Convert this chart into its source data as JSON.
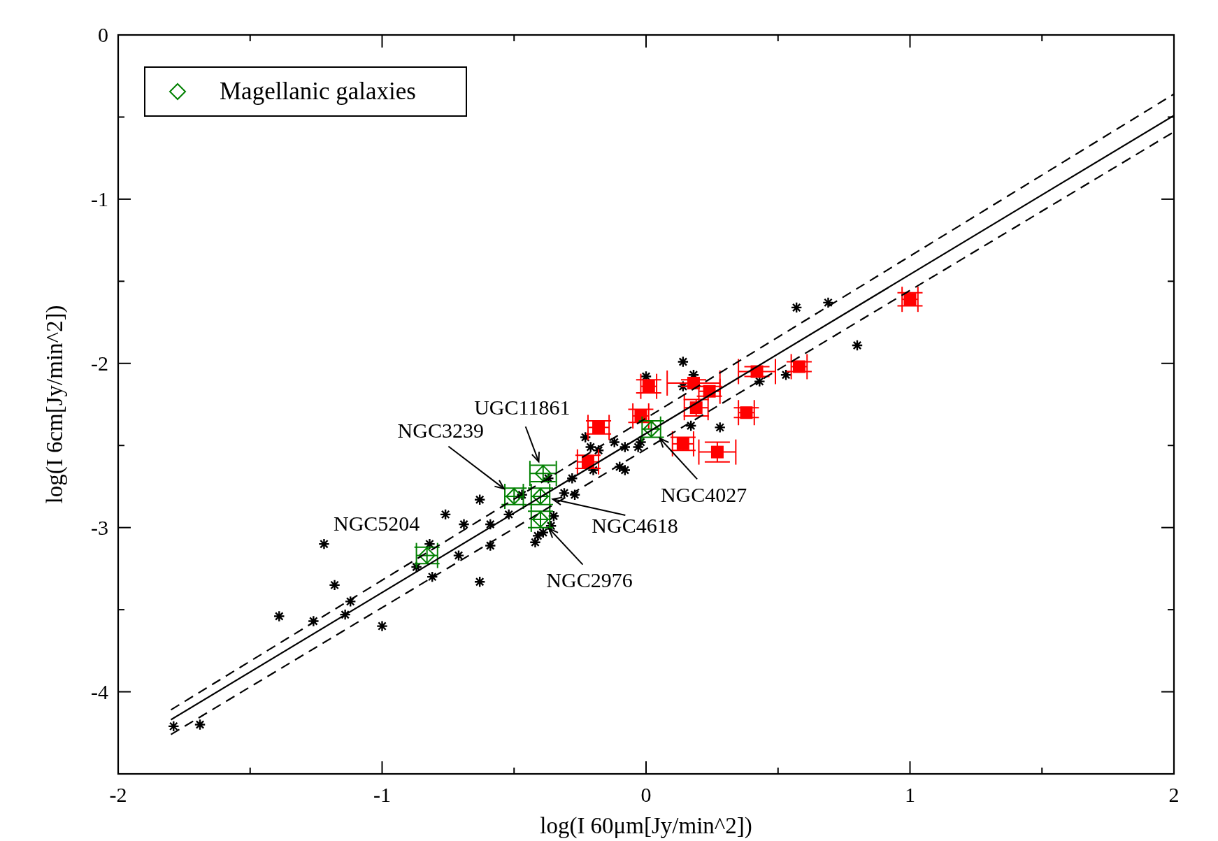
{
  "chart_data": {
    "type": "scatter",
    "xlabel": "log(I 60μm[Jy/min^2])",
    "ylabel": "log(I 6cm[Jy/min^2])",
    "xlim": [
      -2,
      2
    ],
    "xticks": [
      -2,
      {
        "value": -1.5,
        "label": null
      },
      -1,
      {
        "value": -0.5,
        "label": null
      },
      0,
      {
        "value": 0.5,
        "label": null
      },
      1,
      {
        "value": 1.5,
        "label": null
      },
      2
    ],
    "ylim": [
      -4.5,
      0
    ],
    "yticks": [
      {
        "value": -4.5,
        "label": null
      },
      -4,
      {
        "value": -3.5,
        "label": null
      },
      -3,
      {
        "value": -2.5,
        "label": null
      },
      -2,
      {
        "value": -1.5,
        "label": null
      },
      -1,
      {
        "value": -0.5,
        "label": null
      },
      0
    ],
    "legend": "top left",
    "series": [
      {
        "color": "#000000",
        "marker": "cross",
        "x": [
          -1.79,
          -1.69,
          -1.39,
          -1.26,
          -1.22,
          -1.18,
          -1.14,
          -1.12,
          -1.0,
          -0.87,
          -0.82,
          -0.81,
          -0.76,
          -0.71,
          -0.69,
          -0.63,
          -0.59,
          -0.63,
          -0.59,
          -0.52,
          -0.47,
          -0.42,
          -0.41,
          -0.39,
          -0.36,
          -0.35,
          -0.37,
          -0.31,
          -0.27,
          -0.28,
          -0.23,
          -0.21,
          -0.2,
          -0.18,
          -0.12,
          -0.1,
          -0.08,
          -0.08,
          -0.03,
          -0.02,
          0.0,
          0.14,
          0.17,
          0.28,
          0.14,
          0.18,
          0.43,
          0.53,
          0.57,
          0.69,
          0.8
        ],
        "values": [
          -4.21,
          -4.2,
          -3.54,
          -3.57,
          -3.1,
          -3.35,
          -3.53,
          -3.45,
          -3.6,
          -3.24,
          -3.1,
          -3.3,
          -2.92,
          -3.17,
          -2.98,
          -3.33,
          -3.11,
          -2.83,
          -2.98,
          -2.92,
          -2.8,
          -3.09,
          -3.05,
          -3.03,
          -2.99,
          -2.93,
          -2.7,
          -2.79,
          -2.8,
          -2.7,
          -2.45,
          -2.51,
          -2.65,
          -2.53,
          -2.48,
          -2.63,
          -2.65,
          -2.51,
          -2.51,
          -2.48,
          -2.08,
          -1.99,
          -2.38,
          -2.39,
          -2.14,
          -2.07,
          -2.11,
          -2.07,
          -1.66,
          -1.63,
          -1.89
        ]
      },
      {
        "color": "#ff0000",
        "marker": "square",
        "x": [
          -0.18,
          -0.22,
          -0.02,
          0.01,
          0.18,
          0.24,
          0.19,
          0.14,
          0.27,
          0.38,
          0.42,
          0.58,
          1.0
        ],
        "values": [
          -2.39,
          -2.6,
          -2.32,
          -2.14,
          -2.12,
          -2.17,
          -2.27,
          -2.49,
          -2.54,
          -2.3,
          -2.05,
          -2.02,
          -1.61
        ],
        "xerrors": [
          0.04,
          0.04,
          0.03,
          0.03,
          0.1,
          0.04,
          0.045,
          0.04,
          0.07,
          0.03,
          0.07,
          0.03,
          0.03
        ],
        "errors": [
          0.04,
          0.04,
          0.04,
          0.04,
          0.02,
          0.03,
          0.05,
          0.04,
          0.06,
          0.03,
          0.03,
          0.03,
          0.04
        ]
      },
      {
        "name": "Magellanic galaxies",
        "color": "#008000",
        "marker": "diamond",
        "x": [
          -0.83,
          -0.5,
          -0.39,
          -0.4,
          -0.4,
          0.02
        ],
        "values": [
          -3.17,
          -2.81,
          -2.67,
          -2.81,
          -2.95,
          -2.4
        ],
        "xerrors": [
          0.04,
          0.035,
          0.05,
          0.035,
          0.035,
          0.035
        ],
        "errors": [
          0.05,
          0.05,
          0.05,
          0.05,
          0.05,
          0.05
        ]
      },
      {
        "type": "line",
        "color": "#000000",
        "line_style": "solid",
        "marker": "none",
        "x": [
          -1.8,
          2
        ],
        "values": [
          -4.17,
          -0.49
        ]
      },
      {
        "type": "line",
        "color": "#000000",
        "line_style": "dashed",
        "marker": "none",
        "x": [
          -1.8,
          2
        ],
        "values": [
          -4.11,
          -0.36
        ]
      },
      {
        "type": "line",
        "color": "#000000",
        "line_style": "dashed",
        "marker": "none",
        "x": [
          -1.8,
          2
        ],
        "values": [
          -4.26,
          -0.59
        ]
      }
    ],
    "annotations": [
      {
        "text": "NGC5204",
        "x": -0.83,
        "y": -3.17
      },
      {
        "text": "UGC11861",
        "x": -0.39,
        "y": -2.67
      },
      {
        "text": "NGC3239",
        "x": -0.5,
        "y": -2.81
      },
      {
        "text": "NGC4618",
        "x": -0.4,
        "y": -2.81
      },
      {
        "text": "NGC2976",
        "x": -0.4,
        "y": -2.95
      },
      {
        "text": "NGC4027",
        "x": 0.02,
        "y": -2.4
      }
    ]
  }
}
